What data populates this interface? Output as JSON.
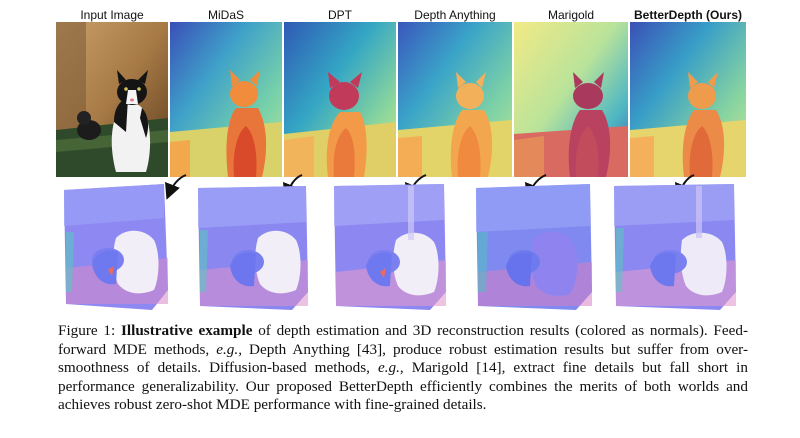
{
  "figure": {
    "columns": [
      {
        "label": "Input Image",
        "bold": false
      },
      {
        "label": "MiDaS",
        "bold": false
      },
      {
        "label": "DPT",
        "bold": false
      },
      {
        "label": "Depth Anything",
        "bold": false
      },
      {
        "label": "Marigold",
        "bold": false
      },
      {
        "label": "BetterDepth (Ours)",
        "bold": true
      }
    ]
  },
  "caption": {
    "prefix": "Figure 1: ",
    "bold_title": "Illustrative example",
    "text_1": " of depth estimation and 3D reconstruction results (colored as normals). Feed-forward MDE methods, ",
    "eg_1": "e.g.",
    "text_2": ", Depth Anything [43], produce robust estimation results but suffer from over-smoothness of details. Diffusion-based methods, ",
    "eg_2": "e.g.",
    "text_3": ", Marigold [14], extract fine details but fall short in performance generalizability. Our proposed BetterDepth efficiently combines the merits of both worlds and achieves robust zero-shot MDE performance with fine-grained details."
  }
}
